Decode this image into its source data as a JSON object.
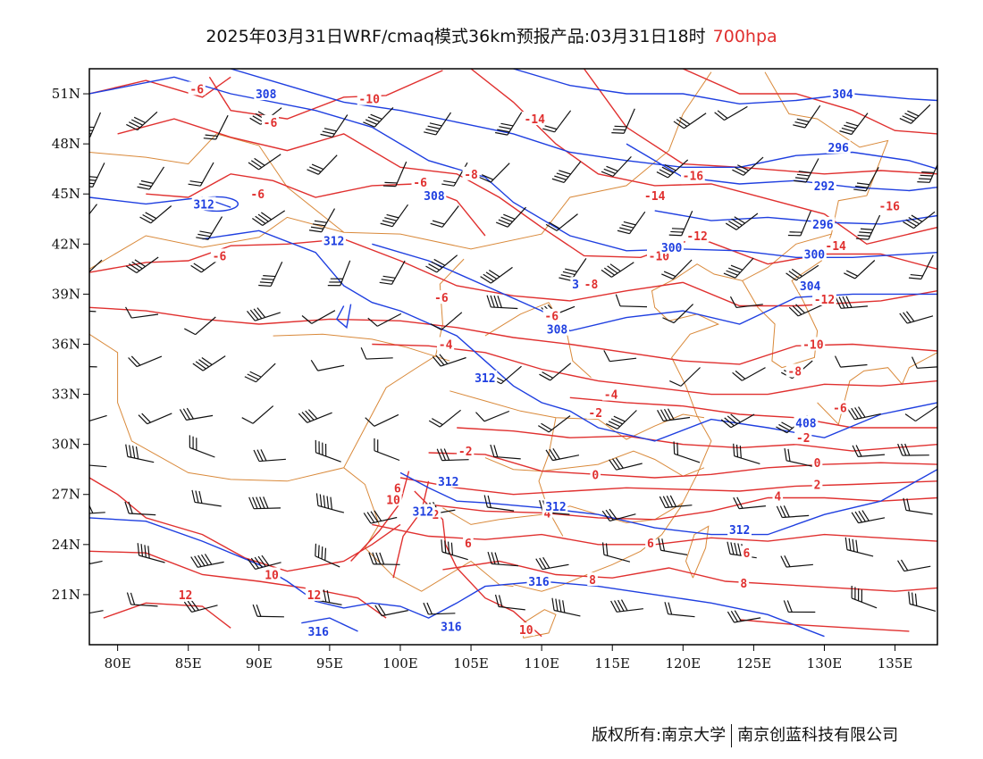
{
  "title": {
    "main": "2025年03月31日WRF/cmaq模式36km预报产品:03月31日18时",
    "level": "700hpa"
  },
  "colors": {
    "temperature": "#e0302f",
    "geopotential": "#1f3fe0",
    "boundary": "#d9893a",
    "wind": "#111111",
    "frame": "#000000"
  },
  "map": {
    "lon_range": [
      78,
      138
    ],
    "lat_range": [
      18,
      52.5
    ],
    "x_ticks": [
      "80E",
      "85E",
      "90E",
      "95E",
      "100E",
      "105E",
      "110E",
      "115E",
      "120E",
      "125E",
      "130E",
      "135E"
    ],
    "x_tick_values": [
      80,
      85,
      90,
      95,
      100,
      105,
      110,
      115,
      120,
      125,
      130,
      135
    ],
    "y_ticks": [
      "21N",
      "24N",
      "27N",
      "30N",
      "33N",
      "36N",
      "39N",
      "42N",
      "45N",
      "48N",
      "51N"
    ],
    "y_tick_values": [
      21,
      24,
      27,
      30,
      33,
      36,
      39,
      42,
      45,
      48,
      51
    ]
  },
  "temperature_labels": [
    {
      "text": "-6",
      "lon": 85.6,
      "lat": 51.3
    },
    {
      "text": "-6",
      "lon": 90.8,
      "lat": 49.3
    },
    {
      "text": "-10",
      "lon": 97.8,
      "lat": 50.7
    },
    {
      "text": "-14",
      "lon": 109.5,
      "lat": 49.5
    },
    {
      "text": "-8",
      "lon": 105.0,
      "lat": 46.2
    },
    {
      "text": "-6",
      "lon": 101.4,
      "lat": 45.7
    },
    {
      "text": "-6",
      "lon": 89.9,
      "lat": 45.0
    },
    {
      "text": "-16",
      "lon": 120.7,
      "lat": 46.1
    },
    {
      "text": "-14",
      "lon": 118.0,
      "lat": 44.9
    },
    {
      "text": "-16",
      "lon": 134.6,
      "lat": 44.3
    },
    {
      "text": "-12",
      "lon": 121.0,
      "lat": 42.5
    },
    {
      "text": "-14",
      "lon": 130.8,
      "lat": 41.9
    },
    {
      "text": "-10",
      "lon": 118.3,
      "lat": 41.3
    },
    {
      "text": "-6",
      "lon": 87.2,
      "lat": 41.3
    },
    {
      "text": "-8",
      "lon": 113.5,
      "lat": 39.6
    },
    {
      "text": "-12",
      "lon": 130.0,
      "lat": 38.7
    },
    {
      "text": "-6",
      "lon": 110.7,
      "lat": 37.7
    },
    {
      "text": "-6",
      "lon": 102.9,
      "lat": 38.8
    },
    {
      "text": "-4",
      "lon": 103.2,
      "lat": 36.0
    },
    {
      "text": "-10",
      "lon": 129.2,
      "lat": 36.0
    },
    {
      "text": "-8",
      "lon": 127.9,
      "lat": 34.4
    },
    {
      "text": "-4",
      "lon": 114.9,
      "lat": 33.0
    },
    {
      "text": "-6",
      "lon": 131.1,
      "lat": 32.2
    },
    {
      "text": "-2",
      "lon": 113.8,
      "lat": 31.9
    },
    {
      "text": "-2",
      "lon": 128.5,
      "lat": 30.4
    },
    {
      "text": "-2",
      "lon": 104.6,
      "lat": 29.6
    },
    {
      "text": "0",
      "lon": 113.8,
      "lat": 28.2
    },
    {
      "text": "0",
      "lon": 129.5,
      "lat": 28.9
    },
    {
      "text": "2",
      "lon": 129.5,
      "lat": 27.6
    },
    {
      "text": "4",
      "lon": 126.7,
      "lat": 26.9
    },
    {
      "text": "6",
      "lon": 99.8,
      "lat": 27.4
    },
    {
      "text": "10",
      "lon": 99.5,
      "lat": 26.7
    },
    {
      "text": "2",
      "lon": 102.5,
      "lat": 25.8
    },
    {
      "text": "4",
      "lon": 110.4,
      "lat": 25.9
    },
    {
      "text": "6",
      "lon": 104.8,
      "lat": 24.1
    },
    {
      "text": "6",
      "lon": 117.7,
      "lat": 24.1
    },
    {
      "text": "6",
      "lon": 124.5,
      "lat": 23.5
    },
    {
      "text": "8",
      "lon": 113.6,
      "lat": 21.9
    },
    {
      "text": "8",
      "lon": 124.3,
      "lat": 21.7
    },
    {
      "text": "10",
      "lon": 90.9,
      "lat": 22.2
    },
    {
      "text": "12",
      "lon": 84.8,
      "lat": 21.0
    },
    {
      "text": "12",
      "lon": 93.9,
      "lat": 21.0
    },
    {
      "text": "10",
      "lon": 108.9,
      "lat": 18.9
    }
  ],
  "geopotential_labels": [
    {
      "text": "308",
      "lon": 90.5,
      "lat": 51.0
    },
    {
      "text": "304",
      "lon": 131.3,
      "lat": 51.0
    },
    {
      "text": "296",
      "lon": 131.0,
      "lat": 47.8
    },
    {
      "text": "292",
      "lon": 130.0,
      "lat": 45.5
    },
    {
      "text": "308",
      "lon": 102.4,
      "lat": 44.9
    },
    {
      "text": "312",
      "lon": 86.1,
      "lat": 44.4
    },
    {
      "text": "296",
      "lon": 129.9,
      "lat": 43.2
    },
    {
      "text": "312",
      "lon": 95.3,
      "lat": 42.2
    },
    {
      "text": "300",
      "lon": 119.2,
      "lat": 41.8
    },
    {
      "text": "300",
      "lon": 129.3,
      "lat": 41.4
    },
    {
      "text": "304",
      "lon": 129.0,
      "lat": 39.5
    },
    {
      "text": "3",
      "lon": 112.4,
      "lat": 39.6
    },
    {
      "text": "308",
      "lon": 111.1,
      "lat": 36.9
    },
    {
      "text": "312",
      "lon": 106.0,
      "lat": 34.0
    },
    {
      "text": "408",
      "lon": 128.7,
      "lat": 31.3
    },
    {
      "text": "312",
      "lon": 103.4,
      "lat": 27.8
    },
    {
      "text": "312",
      "lon": 101.6,
      "lat": 26.0
    },
    {
      "text": "312",
      "lon": 111.0,
      "lat": 26.3
    },
    {
      "text": "312",
      "lon": 124.0,
      "lat": 24.9
    },
    {
      "text": "316",
      "lon": 109.8,
      "lat": 21.8
    },
    {
      "text": "316",
      "lon": 103.6,
      "lat": 19.1
    },
    {
      "text": "316",
      "lon": 94.2,
      "lat": 18.8
    }
  ],
  "footer": {
    "left": "版权所有:南京大学",
    "right": "南京创蓝科技有限公司"
  }
}
